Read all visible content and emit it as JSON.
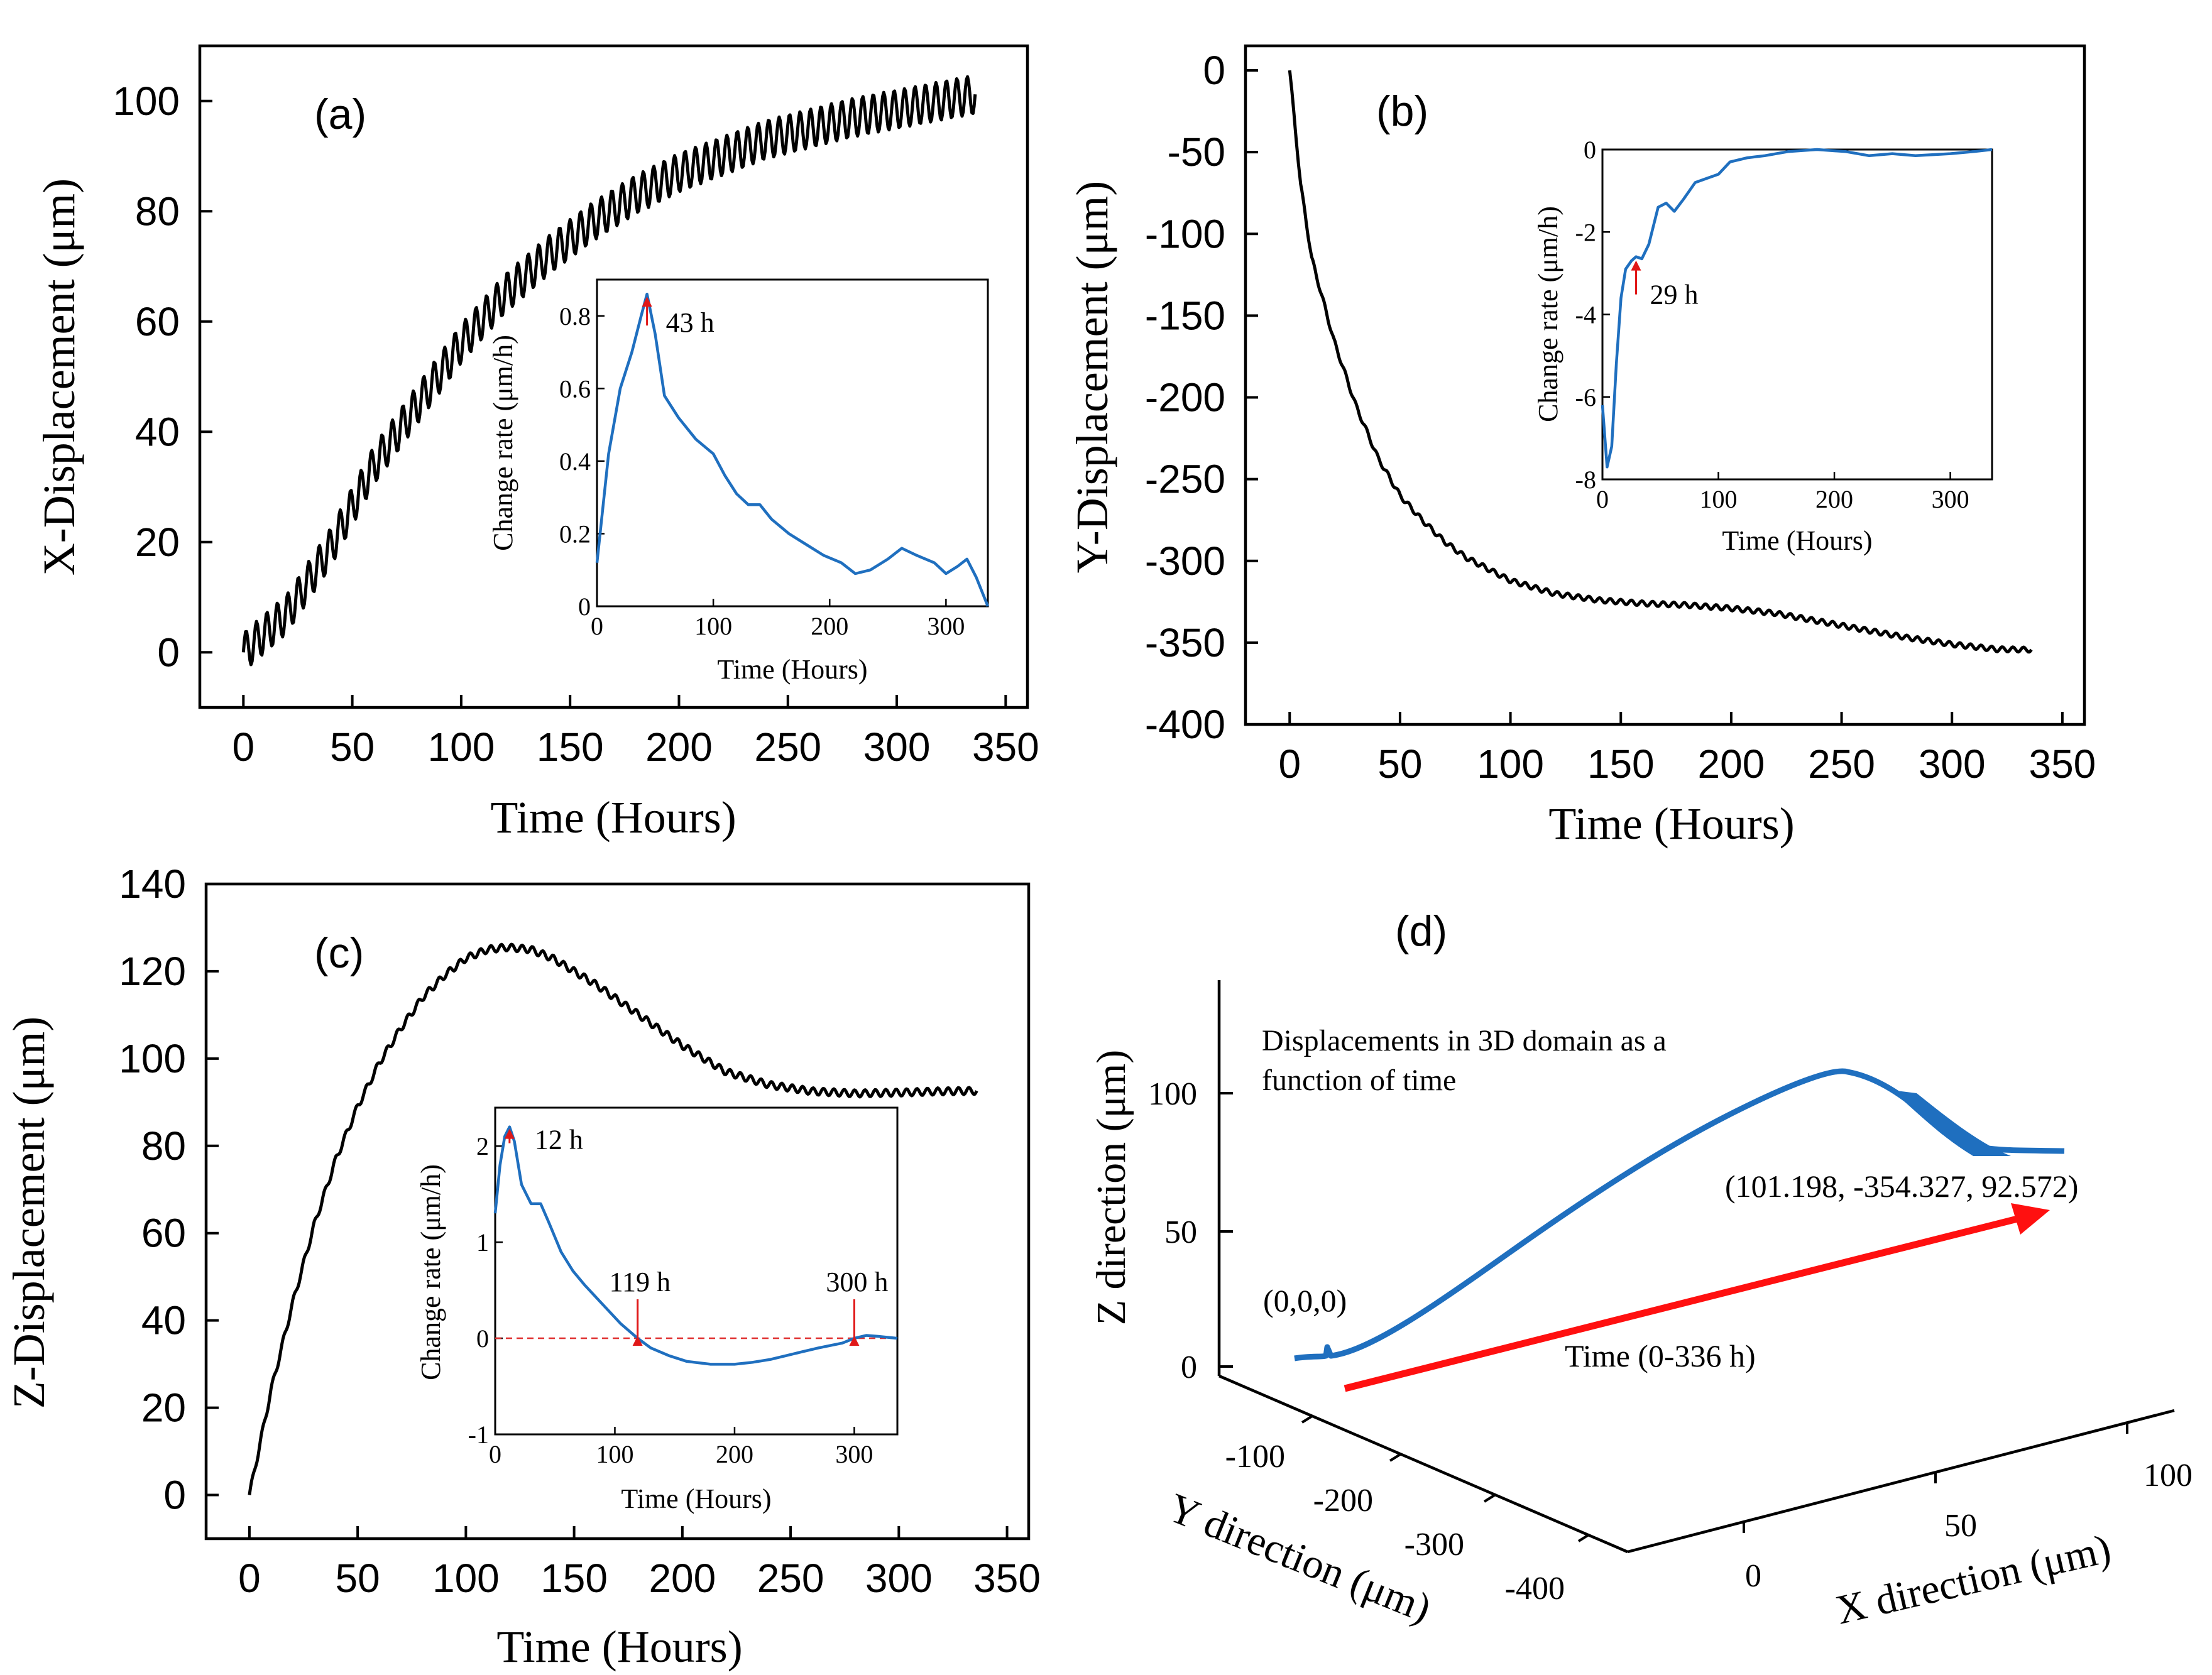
{
  "chart_data": [
    {
      "id": "a",
      "type": "line",
      "panel_label": "(a)",
      "xlabel": "Time (Hours)",
      "ylabel": "X-Displacement (μm)",
      "xlim": [
        -20,
        360
      ],
      "ylim": [
        -10,
        110
      ],
      "xticks": [
        0,
        50,
        100,
        150,
        200,
        250,
        300,
        350
      ],
      "yticks": [
        0,
        20,
        40,
        60,
        80,
        100
      ],
      "series": [
        {
          "name": "X-Displacement",
          "x": [
            0,
            20,
            40,
            60,
            80,
            100,
            120,
            140,
            160,
            180,
            200,
            220,
            240,
            260,
            280,
            300,
            320,
            336
          ],
          "y": [
            0,
            7,
            19,
            34,
            45,
            56,
            65,
            72,
            78,
            83,
            87,
            90,
            93,
            95,
            97,
            98.5,
            100,
            101.2
          ]
        }
      ],
      "inset": {
        "xlabel": "Time (Hours)",
        "ylabel": "Change rate (μm/h)",
        "xlim": [
          0,
          336
        ],
        "ylim": [
          0,
          0.9
        ],
        "xticks": [
          0,
          100,
          200,
          300
        ],
        "yticks": [
          0,
          0.2,
          0.4,
          0.6,
          0.8
        ],
        "series": [
          {
            "name": "Change rate",
            "x": [
              0,
              10,
              20,
              30,
              38,
              43,
              50,
              58,
              70,
              85,
              100,
              110,
              120,
              130,
              140,
              150,
              165,
              180,
              195,
              210,
              222,
              235,
              250,
              262,
              275,
              290,
              300,
              310,
              318,
              326,
              336
            ],
            "y": [
              0.12,
              0.42,
              0.6,
              0.7,
              0.8,
              0.86,
              0.75,
              0.58,
              0.52,
              0.46,
              0.42,
              0.36,
              0.31,
              0.28,
              0.28,
              0.24,
              0.2,
              0.17,
              0.14,
              0.12,
              0.09,
              0.1,
              0.13,
              0.16,
              0.14,
              0.12,
              0.09,
              0.11,
              0.13,
              0.08,
              0.0
            ]
          }
        ],
        "annotations": [
          {
            "text": "43 h",
            "x": 43,
            "y": 0.86
          }
        ]
      }
    },
    {
      "id": "b",
      "type": "line",
      "panel_label": "(b)",
      "xlabel": "Time (Hours)",
      "ylabel": "Y-Displacement (μm)",
      "xlim": [
        -20,
        360
      ],
      "ylim": [
        -400,
        15
      ],
      "xticks": [
        0,
        50,
        100,
        150,
        200,
        250,
        300,
        350
      ],
      "yticks": [
        0,
        -50,
        -100,
        -150,
        -200,
        -250,
        -300,
        -350,
        -400
      ],
      "series": [
        {
          "name": "Y-Displacement",
          "x": [
            0,
            5,
            10,
            20,
            30,
            40,
            50,
            60,
            70,
            80,
            100,
            120,
            140,
            160,
            180,
            200,
            220,
            240,
            260,
            280,
            300,
            320,
            336
          ],
          "y": [
            0,
            -70,
            -115,
            -165,
            -205,
            -237,
            -260,
            -275,
            -288,
            -298,
            -312,
            -320,
            -324,
            -326,
            -327,
            -329,
            -332,
            -337,
            -342,
            -347,
            -351,
            -354,
            -354.3
          ]
        }
      ],
      "inset": {
        "xlabel": "Time (Hours)",
        "ylabel": "Change rate (μm/h)",
        "xlim": [
          0,
          336
        ],
        "ylim": [
          -8,
          0
        ],
        "xticks": [
          0,
          100,
          200,
          300
        ],
        "yticks": [
          -8,
          -6,
          -4,
          -2,
          0
        ],
        "series": [
          {
            "name": "Change rate",
            "x": [
              0,
              4,
              8,
              12,
              16,
              20,
              25,
              29,
              34,
              40,
              48,
              55,
              62,
              70,
              80,
              90,
              100,
              110,
              125,
              140,
              160,
              185,
              210,
              230,
              250,
              270,
              300,
              320,
              336
            ],
            "y": [
              -6.2,
              -7.7,
              -7.2,
              -5.2,
              -3.6,
              -2.9,
              -2.7,
              -2.6,
              -2.65,
              -2.3,
              -1.4,
              -1.3,
              -1.5,
              -1.2,
              -0.8,
              -0.7,
              -0.6,
              -0.3,
              -0.2,
              -0.15,
              -0.05,
              -0.0,
              -0.05,
              -0.15,
              -0.1,
              -0.15,
              -0.1,
              -0.05,
              0.0
            ]
          }
        ],
        "annotations": [
          {
            "text": "29 h",
            "x": 29,
            "y": -2.6
          }
        ]
      }
    },
    {
      "id": "c",
      "type": "line",
      "panel_label": "(c)",
      "xlabel": "Time (Hours)",
      "ylabel": "Z-Displacement (μm)",
      "xlim": [
        -20,
        360
      ],
      "ylim": [
        -10,
        140
      ],
      "xticks": [
        0,
        50,
        100,
        150,
        200,
        250,
        300,
        350
      ],
      "yticks": [
        0,
        20,
        40,
        60,
        80,
        100,
        120,
        140
      ],
      "series": [
        {
          "name": "Z-Displacement",
          "x": [
            0,
            10,
            20,
            30,
            40,
            50,
            60,
            70,
            80,
            90,
            100,
            110,
            119,
            130,
            140,
            150,
            160,
            180,
            200,
            220,
            240,
            260,
            280,
            300,
            320,
            336
          ],
          "y": [
            0,
            24,
            44,
            62,
            77,
            89,
            99,
            107,
            114,
            119,
            123,
            125,
            125.5,
            125,
            123,
            120,
            117,
            110,
            103,
            97,
            94,
            92.5,
            92,
            92.2,
            92.5,
            92.6
          ]
        }
      ],
      "inset": {
        "xlabel": "Time (Hours)",
        "ylabel": "Change rate (μm/h)",
        "xlim": [
          0,
          336
        ],
        "ylim": [
          -1,
          2.4
        ],
        "xticks": [
          0,
          100,
          200,
          300
        ],
        "yticks": [
          -1,
          0,
          1,
          2
        ],
        "reference_line": 0,
        "series": [
          {
            "name": "Change rate",
            "x": [
              0,
              4,
              8,
              12,
              16,
              22,
              30,
              38,
              45,
              55,
              65,
              75,
              90,
              105,
              119,
              130,
              145,
              160,
              180,
              200,
              215,
              230,
              250,
              270,
              290,
              300,
              310,
              320,
              336
            ],
            "y": [
              1.3,
              1.8,
              2.1,
              2.2,
              2.05,
              1.6,
              1.4,
              1.4,
              1.2,
              0.9,
              0.7,
              0.55,
              0.35,
              0.15,
              0.0,
              -0.1,
              -0.18,
              -0.24,
              -0.27,
              -0.27,
              -0.25,
              -0.22,
              -0.16,
              -0.1,
              -0.05,
              0.0,
              0.03,
              0.02,
              0.0
            ]
          }
        ],
        "annotations": [
          {
            "text": "12 h",
            "x": 12,
            "y": 2.2
          },
          {
            "text": "119 h",
            "x": 119,
            "y": 0
          },
          {
            "text": "300 h",
            "x": 300,
            "y": 0
          }
        ]
      }
    },
    {
      "id": "d",
      "type": "line3d",
      "panel_label": "(d)",
      "title": "Displacements in 3D domain as a function of time",
      "xlabel": "X direction (μm)",
      "ylabel": "Y direction (μm)",
      "zlabel": "Z direction (μm)",
      "xticks": [
        0,
        50,
        100
      ],
      "yticks": [
        -100,
        -200,
        -300,
        -400
      ],
      "zticks": [
        0,
        50,
        100
      ],
      "start_label": "(0,0,0)",
      "end_label": "(101.198, -354.327, 92.572)",
      "arrow_label": "Time (0-336 h)",
      "start": [
        0,
        0,
        0
      ],
      "end": [
        101.198,
        -354.327,
        92.572
      ]
    }
  ]
}
